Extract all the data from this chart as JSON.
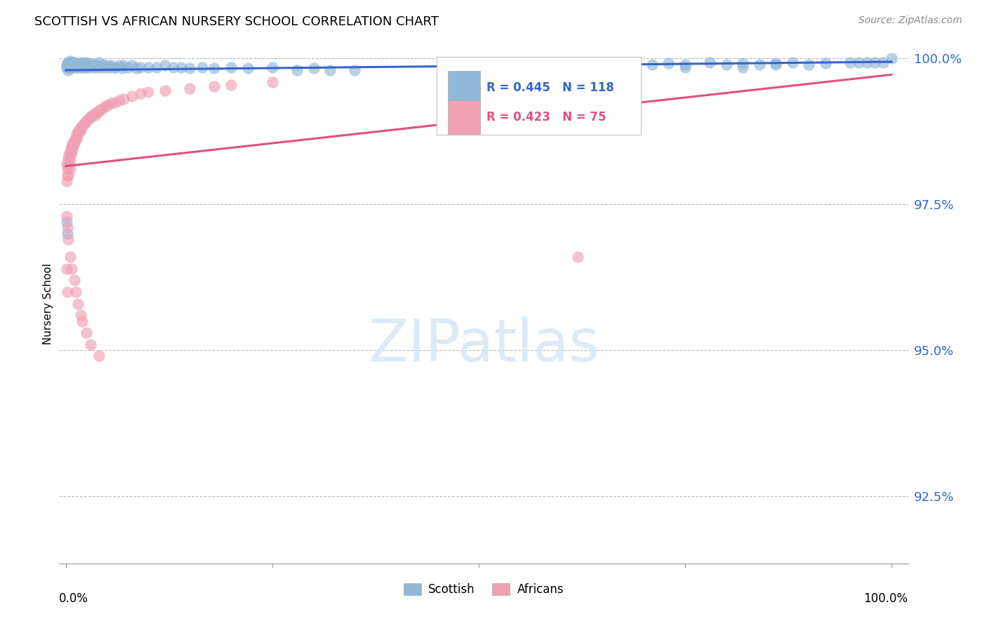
{
  "title": "SCOTTISH VS AFRICAN NURSERY SCHOOL CORRELATION CHART",
  "source": "Source: ZipAtlas.com",
  "ylabel": "Nursery School",
  "legend_scottish": "Scottish",
  "legend_africans": "Africans",
  "R_scottish": 0.445,
  "N_scottish": 118,
  "R_africans": 0.423,
  "N_africans": 75,
  "ylim": [
    0.9135,
    1.0025
  ],
  "yticks": [
    0.925,
    0.95,
    0.975,
    1.0
  ],
  "ytick_labels": [
    "92.5%",
    "95.0%",
    "97.5%",
    "100.0%"
  ],
  "color_scottish": "#92b8d8",
  "color_africans": "#f0a0b4",
  "line_color_scottish": "#3366cc",
  "line_color_africans": "#e05080",
  "scottish_x": [
    0.001,
    0.001,
    0.002,
    0.002,
    0.003,
    0.003,
    0.003,
    0.004,
    0.004,
    0.005,
    0.005,
    0.005,
    0.006,
    0.006,
    0.007,
    0.007,
    0.008,
    0.008,
    0.009,
    0.009,
    0.01,
    0.01,
    0.011,
    0.012,
    0.012,
    0.013,
    0.014,
    0.015,
    0.015,
    0.016,
    0.017,
    0.018,
    0.019,
    0.02,
    0.02,
    0.021,
    0.022,
    0.023,
    0.024,
    0.025,
    0.025,
    0.026,
    0.027,
    0.028,
    0.029,
    0.03,
    0.032,
    0.033,
    0.035,
    0.036,
    0.038,
    0.04,
    0.04,
    0.042,
    0.045,
    0.047,
    0.05,
    0.052,
    0.055,
    0.058,
    0.06,
    0.065,
    0.068,
    0.07,
    0.075,
    0.08,
    0.085,
    0.09,
    0.1,
    0.11,
    0.12,
    0.13,
    0.14,
    0.15,
    0.165,
    0.18,
    0.2,
    0.22,
    0.25,
    0.28,
    0.3,
    0.32,
    0.35,
    0.001,
    0.002,
    0.62,
    0.65,
    0.68,
    0.71,
    0.73,
    0.75,
    0.78,
    0.8,
    0.82,
    0.84,
    0.86,
    0.88,
    0.9,
    0.92,
    0.95,
    0.96,
    0.97,
    0.98,
    0.99,
    1.0,
    0.75,
    0.82,
    0.86
  ],
  "scottish_y": [
    0.9985,
    0.999,
    0.9985,
    0.9992,
    0.9988,
    0.9993,
    0.998,
    0.9988,
    0.9993,
    0.9985,
    0.999,
    0.9995,
    0.9987,
    0.9992,
    0.9985,
    0.999,
    0.9988,
    0.9993,
    0.9985,
    0.999,
    0.9988,
    0.9993,
    0.999,
    0.9985,
    0.9992,
    0.9988,
    0.999,
    0.9985,
    0.9992,
    0.9988,
    0.999,
    0.9985,
    0.9992,
    0.9988,
    0.9993,
    0.999,
    0.9985,
    0.999,
    0.9988,
    0.9993,
    0.9985,
    0.999,
    0.9988,
    0.9985,
    0.9992,
    0.9988,
    0.999,
    0.9985,
    0.999,
    0.9988,
    0.9985,
    0.9988,
    0.9993,
    0.9985,
    0.999,
    0.9985,
    0.9988,
    0.9985,
    0.9988,
    0.9985,
    0.9985,
    0.9988,
    0.9983,
    0.9988,
    0.9985,
    0.9988,
    0.9983,
    0.9985,
    0.9985,
    0.9985,
    0.9988,
    0.9985,
    0.9985,
    0.9983,
    0.9985,
    0.9983,
    0.9985,
    0.9983,
    0.9985,
    0.998,
    0.9983,
    0.998,
    0.998,
    0.972,
    0.97,
    0.999,
    0.999,
    0.9992,
    0.999,
    0.9992,
    0.999,
    0.9993,
    0.999,
    0.9992,
    0.999,
    0.9992,
    0.9993,
    0.999,
    0.9992,
    0.9993,
    0.9993,
    0.9993,
    0.9993,
    0.9993,
    1.0,
    0.9985,
    0.9985,
    0.999
  ],
  "africans_x": [
    0.001,
    0.001,
    0.002,
    0.002,
    0.003,
    0.003,
    0.004,
    0.004,
    0.005,
    0.005,
    0.006,
    0.006,
    0.007,
    0.007,
    0.008,
    0.008,
    0.009,
    0.01,
    0.01,
    0.011,
    0.012,
    0.013,
    0.014,
    0.015,
    0.015,
    0.016,
    0.017,
    0.018,
    0.019,
    0.02,
    0.022,
    0.023,
    0.025,
    0.026,
    0.028,
    0.03,
    0.032,
    0.034,
    0.036,
    0.038,
    0.04,
    0.042,
    0.045,
    0.048,
    0.05,
    0.055,
    0.06,
    0.065,
    0.07,
    0.08,
    0.09,
    0.1,
    0.12,
    0.15,
    0.18,
    0.2,
    0.25,
    0.001,
    0.002,
    0.003,
    0.005,
    0.007,
    0.01,
    0.012,
    0.015,
    0.018,
    0.02,
    0.025,
    0.03,
    0.04,
    0.003,
    0.005,
    0.62,
    0.001,
    0.002
  ],
  "africans_y": [
    0.982,
    0.979,
    0.981,
    0.98,
    0.983,
    0.9815,
    0.982,
    0.9835,
    0.9825,
    0.984,
    0.9835,
    0.9845,
    0.984,
    0.985,
    0.9845,
    0.9855,
    0.985,
    0.9855,
    0.986,
    0.986,
    0.9865,
    0.987,
    0.9865,
    0.987,
    0.9875,
    0.9875,
    0.988,
    0.9878,
    0.9882,
    0.9885,
    0.9888,
    0.989,
    0.9892,
    0.9895,
    0.9897,
    0.99,
    0.9902,
    0.9905,
    0.9903,
    0.9908,
    0.991,
    0.9912,
    0.9915,
    0.9918,
    0.992,
    0.9923,
    0.9925,
    0.9928,
    0.993,
    0.9935,
    0.994,
    0.9942,
    0.9945,
    0.9948,
    0.9952,
    0.9955,
    0.996,
    0.973,
    0.971,
    0.969,
    0.966,
    0.964,
    0.962,
    0.96,
    0.958,
    0.956,
    0.955,
    0.953,
    0.951,
    0.949,
    0.98,
    0.981,
    0.966,
    0.964,
    0.96
  ]
}
